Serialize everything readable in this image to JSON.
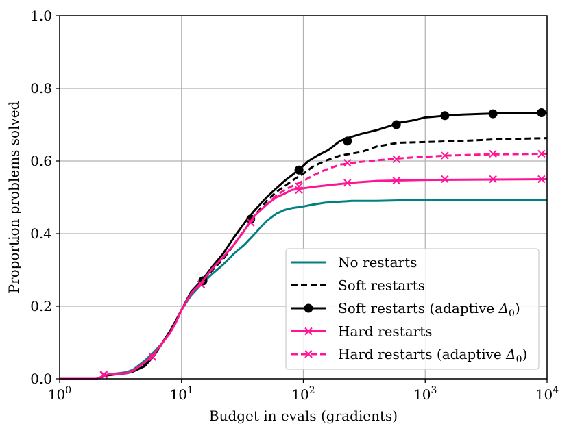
{
  "chart_data": {
    "type": "line",
    "title": "",
    "xlabel": "Budget in evals (gradients)",
    "ylabel": "Proportion problems solved",
    "xscale": "log",
    "xlim": [
      1,
      10000
    ],
    "ylim": [
      0.0,
      1.0
    ],
    "grid": true,
    "xticks": [
      {
        "value": 1,
        "base": "10",
        "exp": "0"
      },
      {
        "value": 10,
        "base": "10",
        "exp": "1"
      },
      {
        "value": 100,
        "base": "10",
        "exp": "2"
      },
      {
        "value": 1000,
        "base": "10",
        "exp": "3"
      },
      {
        "value": 10000,
        "base": "10",
        "exp": "4"
      }
    ],
    "yticks": [
      {
        "value": 0.0,
        "label": "0.0"
      },
      {
        "value": 0.2,
        "label": "0.2"
      },
      {
        "value": 0.4,
        "label": "0.4"
      },
      {
        "value": 0.6,
        "label": "0.6"
      },
      {
        "value": 0.8,
        "label": "0.8"
      },
      {
        "value": 1.0,
        "label": "1.0"
      }
    ],
    "legend_position": "lower-right",
    "series": [
      {
        "name": "No restarts",
        "color": "#008080",
        "dash": "solid",
        "marker": "none",
        "x": [
          1,
          2.0,
          2.5,
          3.5,
          4,
          5,
          6,
          7,
          8,
          9,
          10,
          12,
          15,
          18,
          22,
          27,
          33,
          40,
          50,
          60,
          70,
          80,
          100,
          120,
          150,
          200,
          250,
          400,
          700,
          10000
        ],
        "y": [
          0.0,
          0.0,
          0.012,
          0.018,
          0.025,
          0.05,
          0.075,
          0.1,
          0.13,
          0.16,
          0.19,
          0.23,
          0.265,
          0.29,
          0.315,
          0.345,
          0.37,
          0.4,
          0.435,
          0.455,
          0.465,
          0.47,
          0.475,
          0.48,
          0.485,
          0.488,
          0.49,
          0.49,
          0.492,
          0.492
        ]
      },
      {
        "name": "Soft restarts",
        "color": "#000000",
        "dash": "dashed",
        "marker": "none",
        "x": [
          1,
          2.0,
          2.5,
          3.5,
          4,
          5,
          6,
          7,
          8,
          9,
          10,
          12,
          15,
          18,
          22,
          27,
          33,
          40,
          50,
          60,
          70,
          80,
          100,
          120,
          150,
          200,
          300,
          400,
          600,
          1000,
          2000,
          4000,
          10000
        ],
        "y": [
          0.0,
          0.0,
          0.012,
          0.015,
          0.02,
          0.04,
          0.07,
          0.1,
          0.13,
          0.16,
          0.19,
          0.235,
          0.27,
          0.3,
          0.33,
          0.37,
          0.41,
          0.45,
          0.49,
          0.515,
          0.53,
          0.545,
          0.565,
          0.585,
          0.6,
          0.615,
          0.625,
          0.64,
          0.65,
          0.652,
          0.655,
          0.66,
          0.663
        ]
      },
      {
        "name": "Soft restarts (adaptive Δ₀)",
        "legend_base": "Soft restarts (adaptive ",
        "legend_math": "Δ",
        "legend_sub": "0",
        "legend_tail": ")",
        "color": "#000000",
        "dash": "solid",
        "marker": "circle",
        "x": [
          1,
          2.0,
          2.5,
          3.5,
          4,
          5,
          6,
          7,
          8,
          9,
          10,
          12,
          15,
          18,
          22,
          27,
          33,
          40,
          50,
          60,
          70,
          80,
          95,
          110,
          130,
          160,
          200,
          240,
          300,
          400,
          500,
          600,
          800,
          1000,
          1500,
          2000,
          3000,
          5000,
          10000
        ],
        "y": [
          0.0,
          0.0,
          0.01,
          0.015,
          0.02,
          0.035,
          0.065,
          0.1,
          0.13,
          0.16,
          0.19,
          0.24,
          0.275,
          0.31,
          0.345,
          0.39,
          0.43,
          0.465,
          0.5,
          0.525,
          0.545,
          0.56,
          0.58,
          0.6,
          0.615,
          0.63,
          0.655,
          0.665,
          0.675,
          0.685,
          0.695,
          0.705,
          0.712,
          0.72,
          0.725,
          0.728,
          0.73,
          0.732,
          0.733
        ],
        "marker_x": [
          15,
          37,
          92,
          230,
          580,
          1450,
          3600,
          9000
        ],
        "marker_y": [
          0.27,
          0.44,
          0.575,
          0.655,
          0.7,
          0.725,
          0.73,
          0.733
        ]
      },
      {
        "name": "Hard restarts",
        "color": "#FF1493",
        "dash": "solid",
        "marker": "x",
        "x": [
          1,
          2.0,
          2.5,
          3.5,
          4,
          5,
          6,
          7,
          8,
          9,
          10,
          12,
          15,
          18,
          22,
          27,
          33,
          40,
          50,
          60,
          70,
          80,
          100,
          130,
          180,
          250,
          400,
          1000,
          10000
        ],
        "y": [
          0.0,
          0.0,
          0.012,
          0.015,
          0.022,
          0.045,
          0.07,
          0.1,
          0.125,
          0.155,
          0.19,
          0.235,
          0.27,
          0.305,
          0.335,
          0.37,
          0.41,
          0.45,
          0.48,
          0.5,
          0.51,
          0.52,
          0.525,
          0.53,
          0.535,
          0.54,
          0.545,
          0.548,
          0.55
        ],
        "marker_x": [
          2.3,
          5.8,
          14.5,
          37,
          92,
          230,
          580,
          1450,
          3600,
          9000
        ],
        "marker_y": [
          0.01,
          0.06,
          0.26,
          0.43,
          0.52,
          0.54,
          0.546,
          0.55,
          0.55,
          0.55
        ]
      },
      {
        "name": "Hard restarts (adaptive Δ₀)",
        "legend_base": "Hard restarts (adaptive ",
        "legend_math": "Δ",
        "legend_sub": "0",
        "legend_tail": ")",
        "color": "#FF1493",
        "dash": "dashed",
        "marker": "x",
        "x": [
          1,
          2.0,
          2.5,
          3.5,
          4,
          5,
          6,
          7,
          8,
          9,
          10,
          12,
          15,
          18,
          22,
          27,
          33,
          40,
          50,
          60,
          70,
          80,
          100,
          120,
          150,
          200,
          300,
          500,
          800,
          1500,
          3000,
          10000
        ],
        "y": [
          0.0,
          0.0,
          0.012,
          0.016,
          0.022,
          0.045,
          0.07,
          0.1,
          0.125,
          0.155,
          0.19,
          0.235,
          0.27,
          0.305,
          0.335,
          0.37,
          0.41,
          0.45,
          0.48,
          0.505,
          0.52,
          0.53,
          0.545,
          0.56,
          0.575,
          0.59,
          0.598,
          0.605,
          0.61,
          0.615,
          0.618,
          0.62
        ],
        "marker_x": [
          2.3,
          5.8,
          14.5,
          37,
          92,
          230,
          580,
          1450,
          3600,
          9000
        ],
        "marker_y": [
          0.012,
          0.06,
          0.26,
          0.43,
          0.53,
          0.595,
          0.605,
          0.615,
          0.62,
          0.62
        ]
      }
    ]
  }
}
